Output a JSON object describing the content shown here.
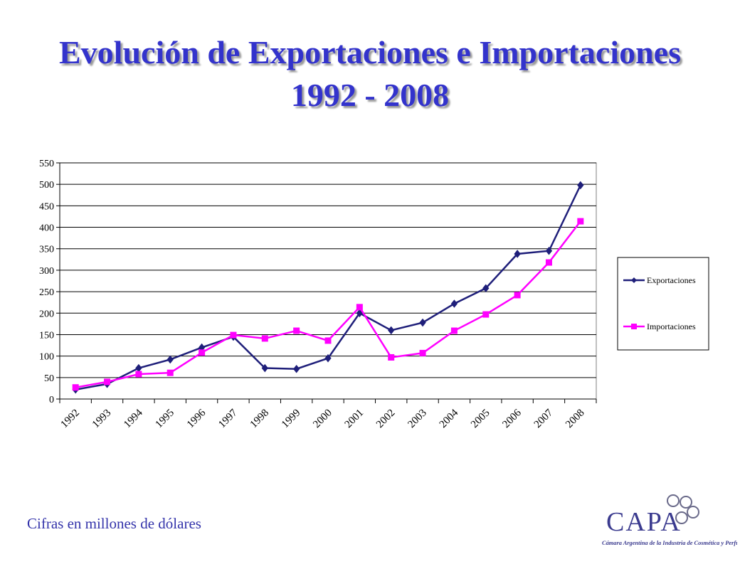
{
  "title": {
    "line1": "Evolución de Exportaciones e Importaciones",
    "line2": "1992 - 2008"
  },
  "note": "Cifras en millones de dólares",
  "logo": {
    "name": "CAPA",
    "subtitle": "Cámara Argentina de la Industria de Cosmética y Perfumería"
  },
  "colors": {
    "title": "#3333cc",
    "exports": "#1f1f7a",
    "imports": "#ff00ff"
  },
  "chart_data": {
    "type": "line",
    "title": "",
    "xlabel": "",
    "ylabel": "",
    "categories": [
      "1992",
      "1993",
      "1994",
      "1995",
      "1996",
      "1997",
      "1998",
      "1999",
      "2000",
      "2001",
      "2002",
      "2003",
      "2004",
      "2005",
      "2006",
      "2007",
      "2008"
    ],
    "ylim": [
      0,
      550
    ],
    "yticks": [
      0,
      50,
      100,
      150,
      200,
      250,
      300,
      350,
      400,
      450,
      500,
      550
    ],
    "grid": "horizontal",
    "legend_position": "right",
    "series": [
      {
        "name": "Exportaciones",
        "marker": "diamond",
        "color": "#1f1f7a",
        "values": [
          22,
          35,
          72,
          92,
          120,
          145,
          72,
          70,
          95,
          200,
          160,
          178,
          222,
          258,
          338,
          345,
          498
        ]
      },
      {
        "name": "Importaciones",
        "marker": "square",
        "color": "#ff00ff",
        "values": [
          27,
          40,
          58,
          61,
          108,
          149,
          141,
          159,
          136,
          214,
          97,
          107,
          159,
          197,
          242,
          318,
          414
        ]
      }
    ]
  }
}
